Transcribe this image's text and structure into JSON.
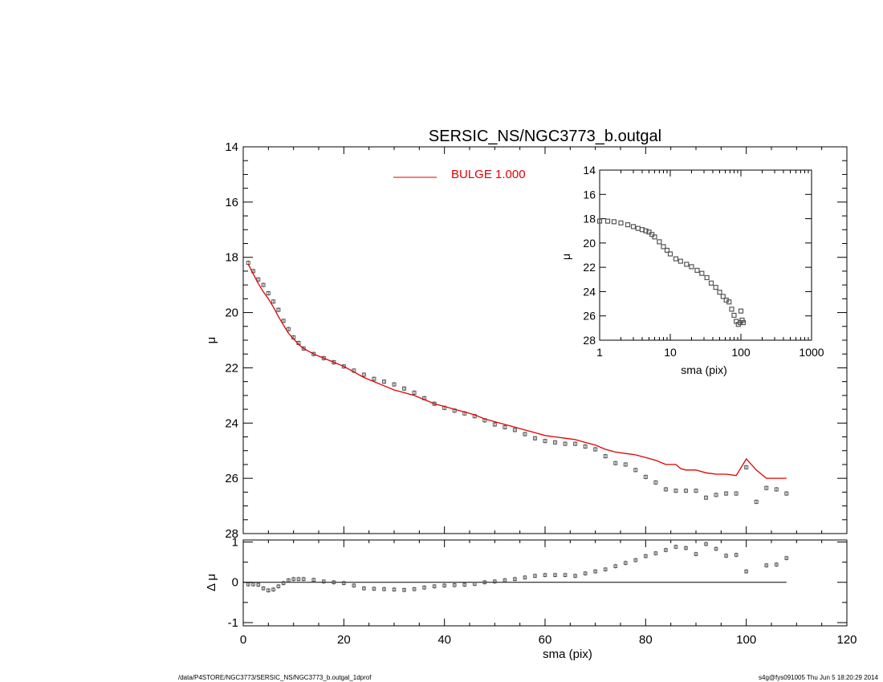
{
  "chart_data": [
    {
      "type": "scatter",
      "panel": "main-profile",
      "title": "SERSIC_NS/NGC3773_b.outgal",
      "xlabel": "",
      "ylabel": "μ",
      "xlim": [
        0,
        120
      ],
      "ylim": [
        28,
        14
      ],
      "y_inverted": true,
      "x_ticks": [
        "0",
        "20",
        "40",
        "60",
        "80",
        "100",
        "120"
      ],
      "y_ticks": [
        "14",
        "16",
        "18",
        "20",
        "22",
        "24",
        "26",
        "28"
      ],
      "legend": {
        "placement": "top-center",
        "label": "BULGE  1.000",
        "color": "#e00000"
      },
      "series": [
        {
          "kind": "data-points",
          "color": "#555555",
          "points": [
            [
              1.0,
              18.2
            ],
            [
              2.0,
              18.5
            ],
            [
              3.0,
              18.8
            ],
            [
              4.0,
              19.0
            ],
            [
              5.0,
              19.3
            ],
            [
              6.0,
              19.6
            ],
            [
              7.0,
              19.9
            ],
            [
              8.0,
              20.3
            ],
            [
              9.0,
              20.6
            ],
            [
              10.0,
              20.9
            ],
            [
              11.0,
              21.1
            ],
            [
              12.0,
              21.3
            ],
            [
              14.0,
              21.5
            ],
            [
              16.0,
              21.65
            ],
            [
              18.0,
              21.8
            ],
            [
              20.0,
              21.95
            ],
            [
              22.0,
              22.1
            ],
            [
              24.0,
              22.25
            ],
            [
              26.0,
              22.4
            ],
            [
              28.0,
              22.5
            ],
            [
              30.0,
              22.6
            ],
            [
              32.0,
              22.75
            ],
            [
              34.0,
              22.9
            ],
            [
              36.0,
              23.1
            ],
            [
              38.0,
              23.3
            ],
            [
              40.0,
              23.45
            ],
            [
              42.0,
              23.55
            ],
            [
              44.0,
              23.65
            ],
            [
              46.0,
              23.75
            ],
            [
              48.0,
              23.9
            ],
            [
              50.0,
              24.05
            ],
            [
              52.0,
              24.15
            ],
            [
              54.0,
              24.25
            ],
            [
              56.0,
              24.4
            ],
            [
              58.0,
              24.55
            ],
            [
              60.0,
              24.65
            ],
            [
              62.0,
              24.7
            ],
            [
              64.0,
              24.75
            ],
            [
              66.0,
              24.75
            ],
            [
              68.0,
              24.85
            ],
            [
              70.0,
              24.95
            ],
            [
              72.0,
              25.2
            ],
            [
              74.0,
              25.45
            ],
            [
              76.0,
              25.5
            ],
            [
              78.0,
              25.7
            ],
            [
              80.0,
              25.95
            ],
            [
              82.0,
              26.15
            ],
            [
              84.0,
              26.4
            ],
            [
              86.0,
              26.45
            ],
            [
              88.0,
              26.45
            ],
            [
              90.0,
              26.45
            ],
            [
              92.0,
              26.7
            ],
            [
              94.0,
              26.6
            ],
            [
              96.0,
              26.55
            ],
            [
              98.0,
              26.55
            ],
            [
              100.0,
              25.6
            ],
            [
              102.0,
              26.85
            ],
            [
              104.0,
              26.35
            ],
            [
              106.0,
              26.4
            ],
            [
              108.0,
              26.55
            ]
          ]
        },
        {
          "kind": "model",
          "name": "BULGE  1.000",
          "color": "#e00000",
          "points": [
            [
              1.0,
              18.25
            ],
            [
              2.0,
              18.6
            ],
            [
              3.0,
              18.95
            ],
            [
              4.0,
              19.25
            ],
            [
              5.0,
              19.5
            ],
            [
              6.0,
              19.8
            ],
            [
              7.0,
              20.15
            ],
            [
              8.0,
              20.45
            ],
            [
              9.0,
              20.75
            ],
            [
              10.0,
              20.95
            ],
            [
              11.0,
              21.15
            ],
            [
              12.0,
              21.3
            ],
            [
              14.0,
              21.5
            ],
            [
              16.0,
              21.65
            ],
            [
              18.0,
              21.8
            ],
            [
              20.0,
              21.95
            ],
            [
              22.0,
              22.15
            ],
            [
              24.0,
              22.35
            ],
            [
              26.0,
              22.5
            ],
            [
              28.0,
              22.65
            ],
            [
              30.0,
              22.8
            ],
            [
              32.0,
              22.9
            ],
            [
              34.0,
              23.0
            ],
            [
              36.0,
              23.15
            ],
            [
              38.0,
              23.3
            ],
            [
              40.0,
              23.4
            ],
            [
              42.0,
              23.5
            ],
            [
              44.0,
              23.6
            ],
            [
              46.0,
              23.7
            ],
            [
              48.0,
              23.85
            ],
            [
              50.0,
              23.95
            ],
            [
              52.0,
              24.05
            ],
            [
              54.0,
              24.15
            ],
            [
              56.0,
              24.25
            ],
            [
              58.0,
              24.35
            ],
            [
              60.0,
              24.45
            ],
            [
              62.0,
              24.5
            ],
            [
              64.0,
              24.55
            ],
            [
              66.0,
              24.6
            ],
            [
              68.0,
              24.7
            ],
            [
              70.0,
              24.8
            ],
            [
              72.0,
              24.95
            ],
            [
              74.0,
              25.05
            ],
            [
              76.0,
              25.1
            ],
            [
              78.0,
              25.15
            ],
            [
              80.0,
              25.25
            ],
            [
              82.0,
              25.35
            ],
            [
              84.0,
              25.5
            ],
            [
              86.0,
              25.5
            ],
            [
              87.0,
              25.65
            ],
            [
              88.0,
              25.7
            ],
            [
              90.0,
              25.7
            ],
            [
              92.0,
              25.8
            ],
            [
              94.0,
              25.85
            ],
            [
              96.0,
              25.85
            ],
            [
              98.0,
              25.9
            ],
            [
              100.0,
              25.3
            ],
            [
              102.0,
              25.7
            ],
            [
              104.0,
              26.0
            ],
            [
              106.0,
              26.0
            ],
            [
              108.0,
              26.0
            ]
          ]
        }
      ]
    },
    {
      "type": "scatter",
      "panel": "residual",
      "title": "",
      "xlabel": "sma (pix)",
      "ylabel": "Δ μ",
      "xlim": [
        0,
        120
      ],
      "ylim": [
        -1.0,
        1.0
      ],
      "x_ticks": [
        "0",
        "20",
        "40",
        "60",
        "80",
        "100",
        "120"
      ],
      "y_ticks": [
        "1",
        "0",
        "-1"
      ],
      "zero_line": {
        "x_end": 108
      },
      "series": [
        {
          "kind": "residuals",
          "color": "#555555",
          "points": [
            [
              1.0,
              -0.05
            ],
            [
              2.0,
              -0.05
            ],
            [
              3.0,
              -0.06
            ],
            [
              4.0,
              -0.15
            ],
            [
              5.0,
              -0.2
            ],
            [
              6.0,
              -0.18
            ],
            [
              7.0,
              -0.1
            ],
            [
              8.0,
              -0.02
            ],
            [
              9.0,
              0.05
            ],
            [
              10.0,
              0.08
            ],
            [
              11.0,
              0.08
            ],
            [
              12.0,
              0.08
            ],
            [
              14.0,
              0.06
            ],
            [
              16.0,
              0.02
            ],
            [
              18.0,
              0.0
            ],
            [
              20.0,
              -0.02
            ],
            [
              22.0,
              -0.08
            ],
            [
              24.0,
              -0.15
            ],
            [
              26.0,
              -0.16
            ],
            [
              28.0,
              -0.17
            ],
            [
              30.0,
              -0.18
            ],
            [
              32.0,
              -0.19
            ],
            [
              34.0,
              -0.17
            ],
            [
              36.0,
              -0.13
            ],
            [
              38.0,
              -0.1
            ],
            [
              40.0,
              -0.08
            ],
            [
              42.0,
              -0.07
            ],
            [
              44.0,
              -0.06
            ],
            [
              46.0,
              -0.04
            ],
            [
              48.0,
              0.0
            ],
            [
              50.0,
              0.02
            ],
            [
              52.0,
              0.05
            ],
            [
              54.0,
              0.08
            ],
            [
              56.0,
              0.12
            ],
            [
              58.0,
              0.16
            ],
            [
              60.0,
              0.18
            ],
            [
              62.0,
              0.18
            ],
            [
              64.0,
              0.18
            ],
            [
              66.0,
              0.16
            ],
            [
              68.0,
              0.22
            ],
            [
              70.0,
              0.27
            ],
            [
              72.0,
              0.32
            ],
            [
              74.0,
              0.4
            ],
            [
              76.0,
              0.48
            ],
            [
              78.0,
              0.55
            ],
            [
              80.0,
              0.65
            ],
            [
              82.0,
              0.72
            ],
            [
              84.0,
              0.8
            ],
            [
              86.0,
              0.88
            ],
            [
              88.0,
              0.85
            ],
            [
              90.0,
              0.7
            ],
            [
              92.0,
              0.95
            ],
            [
              94.0,
              0.83
            ],
            [
              96.0,
              0.66
            ],
            [
              98.0,
              0.68
            ],
            [
              100.0,
              0.27
            ],
            [
              102.0,
              null
            ],
            [
              104.0,
              0.42
            ],
            [
              106.0,
              0.44
            ],
            [
              108.0,
              0.6
            ]
          ]
        }
      ]
    },
    {
      "type": "scatter",
      "panel": "inset-log",
      "title": "",
      "xlabel": "sma (pix)",
      "ylabel": "μ",
      "x_scale": "log",
      "xlim": [
        1,
        1000
      ],
      "ylim": [
        28,
        14
      ],
      "y_inverted": true,
      "x_ticks": [
        "1",
        "10",
        "100",
        "1000"
      ],
      "y_ticks": [
        "14",
        "16",
        "18",
        "20",
        "22",
        "24",
        "26",
        "28"
      ],
      "series": [
        {
          "kind": "data-points",
          "color": "#555555",
          "points": [
            [
              1.0,
              18.2
            ],
            [
              1.3,
              18.2
            ],
            [
              1.6,
              18.25
            ],
            [
              2.0,
              18.35
            ],
            [
              2.5,
              18.5
            ],
            [
              3.0,
              18.65
            ],
            [
              3.5,
              18.8
            ],
            [
              4.0,
              18.9
            ],
            [
              4.5,
              19.0
            ],
            [
              5.0,
              19.1
            ],
            [
              5.5,
              19.3
            ],
            [
              6.0,
              19.5
            ],
            [
              7.0,
              19.9
            ],
            [
              8.0,
              20.3
            ],
            [
              9.0,
              20.6
            ],
            [
              10.0,
              20.9
            ],
            [
              12.0,
              21.3
            ],
            [
              14.0,
              21.5
            ],
            [
              17.0,
              21.75
            ],
            [
              20.0,
              21.95
            ],
            [
              24.0,
              22.25
            ],
            [
              28.0,
              22.5
            ],
            [
              33.0,
              22.85
            ],
            [
              38.0,
              23.3
            ],
            [
              44.0,
              23.65
            ],
            [
              50.0,
              24.05
            ],
            [
              56.0,
              24.4
            ],
            [
              62.0,
              24.7
            ],
            [
              68.0,
              24.85
            ],
            [
              74.0,
              25.45
            ],
            [
              80.0,
              25.95
            ],
            [
              86.0,
              26.45
            ],
            [
              92.0,
              26.7
            ],
            [
              98.0,
              26.55
            ],
            [
              104.0,
              26.35
            ],
            [
              108.0,
              26.55
            ],
            [
              100.0,
              25.6
            ]
          ]
        }
      ]
    }
  ],
  "footer": {
    "left": "/data/P4STORE/NGC3773/SERSIC_NS/NGC3773_b.outgal_1dprof",
    "right": "s4g@fys091005  Thu Jun  5 18:20:29 2014"
  }
}
